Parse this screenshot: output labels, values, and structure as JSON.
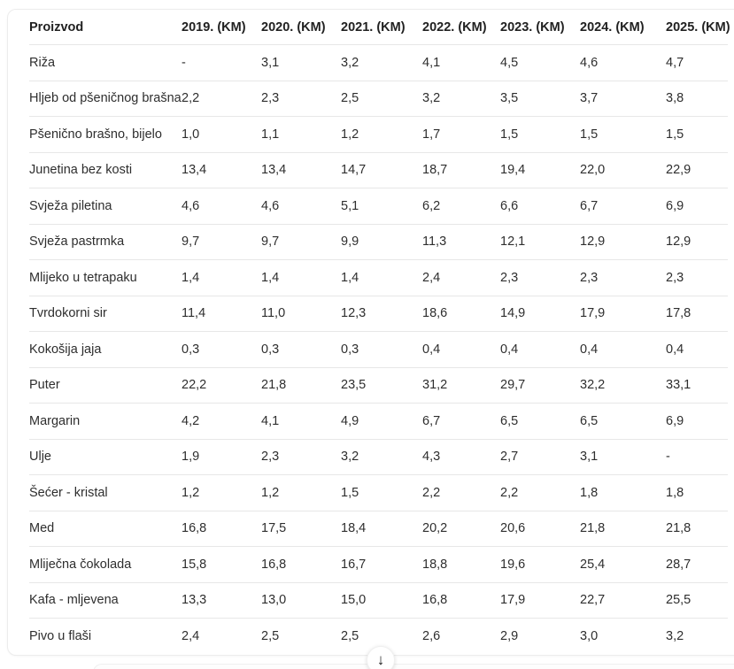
{
  "chart_data": {
    "type": "table",
    "title": "",
    "columns": [
      "Proizvod",
      "2019. (KM)",
      "2020. (KM)",
      "2021. (KM)",
      "2022. (KM)",
      "2023. (KM)",
      "2024. (KM)",
      "2025. (KM)"
    ],
    "rows": [
      {
        "product": "Riža",
        "values": [
          "-",
          "3,1",
          "3,2",
          "4,1",
          "4,5",
          "4,6",
          "4,7"
        ]
      },
      {
        "product": "Hljeb od pšeničnog brašna",
        "values": [
          "2,2",
          "2,3",
          "2,5",
          "3,2",
          "3,5",
          "3,7",
          "3,8"
        ]
      },
      {
        "product": "Pšenično brašno, bijelo",
        "values": [
          "1,0",
          "1,1",
          "1,2",
          "1,7",
          "1,5",
          "1,5",
          "1,5"
        ]
      },
      {
        "product": "Junetina bez kosti",
        "values": [
          "13,4",
          "13,4",
          "14,7",
          "18,7",
          "19,4",
          "22,0",
          "22,9"
        ]
      },
      {
        "product": "Svježa piletina",
        "values": [
          "4,6",
          "4,6",
          "5,1",
          "6,2",
          "6,6",
          "6,7",
          "6,9"
        ]
      },
      {
        "product": "Svježa pastrmka",
        "values": [
          "9,7",
          "9,7",
          "9,9",
          "11,3",
          "12,1",
          "12,9",
          "12,9"
        ]
      },
      {
        "product": "Mlijeko u tetrapaku",
        "values": [
          "1,4",
          "1,4",
          "1,4",
          "2,4",
          "2,3",
          "2,3",
          "2,3"
        ]
      },
      {
        "product": "Tvrdokorni sir",
        "values": [
          "11,4",
          "11,0",
          "12,3",
          "18,6",
          "14,9",
          "17,9",
          "17,8"
        ]
      },
      {
        "product": "Kokošija jaja",
        "values": [
          "0,3",
          "0,3",
          "0,3",
          "0,4",
          "0,4",
          "0,4",
          "0,4"
        ]
      },
      {
        "product": "Puter",
        "values": [
          "22,2",
          "21,8",
          "23,5",
          "31,2",
          "29,7",
          "32,2",
          "33,1"
        ]
      },
      {
        "product": "Margarin",
        "values": [
          "4,2",
          "4,1",
          "4,9",
          "6,7",
          "6,5",
          "6,5",
          "6,9"
        ]
      },
      {
        "product": "Ulje",
        "values": [
          "1,9",
          "2,3",
          "3,2",
          "4,3",
          "2,7",
          "3,1",
          "-"
        ]
      },
      {
        "product": "Šećer - kristal",
        "values": [
          "1,2",
          "1,2",
          "1,5",
          "2,2",
          "2,2",
          "1,8",
          "1,8"
        ]
      },
      {
        "product": "Med",
        "values": [
          "16,8",
          "17,5",
          "18,4",
          "20,2",
          "20,6",
          "21,8",
          "21,8"
        ]
      },
      {
        "product": "Mliječna čokolada",
        "values": [
          "15,8",
          "16,8",
          "16,7",
          "18,8",
          "19,6",
          "25,4",
          "28,7"
        ]
      },
      {
        "product": "Kafa - mljevena",
        "values": [
          "13,3",
          "13,0",
          "15,0",
          "16,8",
          "17,9",
          "22,7",
          "25,5"
        ]
      },
      {
        "product": "Pivo u flaši",
        "values": [
          "2,4",
          "2,5",
          "2,5",
          "2,6",
          "2,9",
          "3,0",
          "3,2"
        ]
      }
    ]
  },
  "ui": {
    "scroll_down": {
      "glyph": "↓"
    }
  },
  "colors": {
    "background": "#ffffff",
    "card_border": "#ececec",
    "row_separator": "#e7e7e7",
    "header_text": "#212121",
    "cell_text": "#2e2e2e"
  }
}
